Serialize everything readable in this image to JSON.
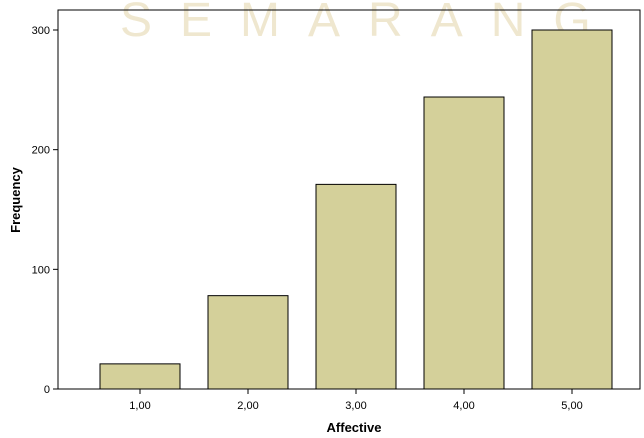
{
  "watermark": {
    "text": "SEMARANG",
    "color": "#efe7cf"
  },
  "chart_data": {
    "type": "bar",
    "categories": [
      "1,00",
      "2,00",
      "3,00",
      "4,00",
      "5,00"
    ],
    "values": [
      21,
      78,
      171,
      244,
      300
    ],
    "title": "",
    "xlabel": "Affective",
    "ylabel": "Frequency",
    "ylim": [
      0,
      300
    ],
    "yticks": [
      0,
      100,
      200,
      300
    ],
    "grid": false,
    "legend": "none",
    "bar_color": "#d4d09a",
    "bar_edge_color": "#000000"
  }
}
